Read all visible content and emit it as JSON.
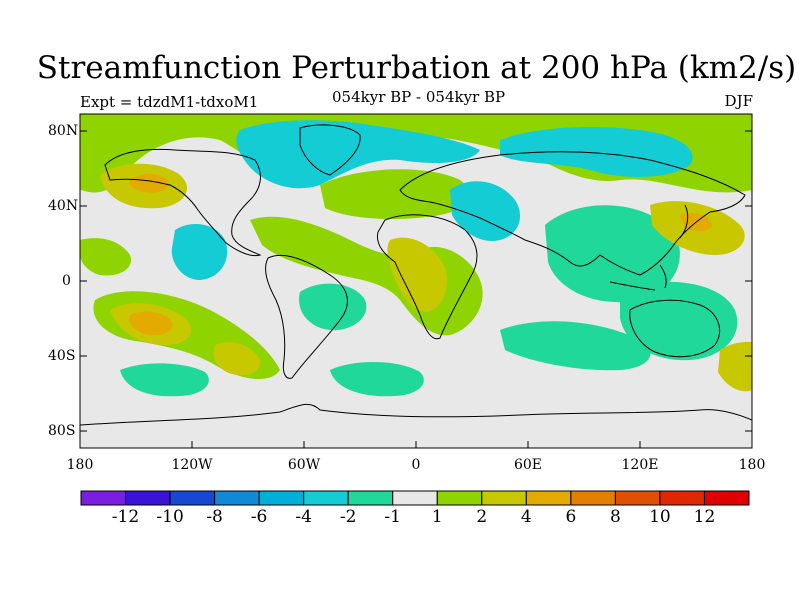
{
  "title": "Streamfunction Perturbation at 200 hPa (km2/s)",
  "experiment": "Expt = tdzdM1-tdxoM1",
  "subtitle": "054kyr BP - 054kyr BP",
  "season": "DJF",
  "axes": {
    "y_ticks": [
      "80N",
      "40N",
      "0",
      "40S",
      "80S"
    ],
    "x_ticks": [
      "180",
      "120W",
      "60W",
      "0",
      "60E",
      "120E",
      "180"
    ]
  },
  "colorbar": {
    "labels": [
      "-12",
      "-10",
      "-8",
      "-6",
      "-4",
      "-2",
      "-1",
      "1",
      "2",
      "4",
      "6",
      "8",
      "10",
      "12"
    ],
    "colors": [
      "#7a1fe0",
      "#3a14d6",
      "#1748d3",
      "#1289d6",
      "#00b0d8",
      "#14ccd4",
      "#20d89a",
      "#e8e8e8",
      "#8fd400",
      "#c7c800",
      "#e3aa00",
      "#e38000",
      "#e05000",
      "#e02800",
      "#e00000"
    ]
  },
  "palette": {
    "neutral": "#e8e8e8",
    "neg1": "#20d89a",
    "neg2": "#14ccd4",
    "pos1": "#8fd400",
    "pos2": "#c7c800",
    "pos3": "#e3aa00",
    "coast": "#000000"
  }
}
